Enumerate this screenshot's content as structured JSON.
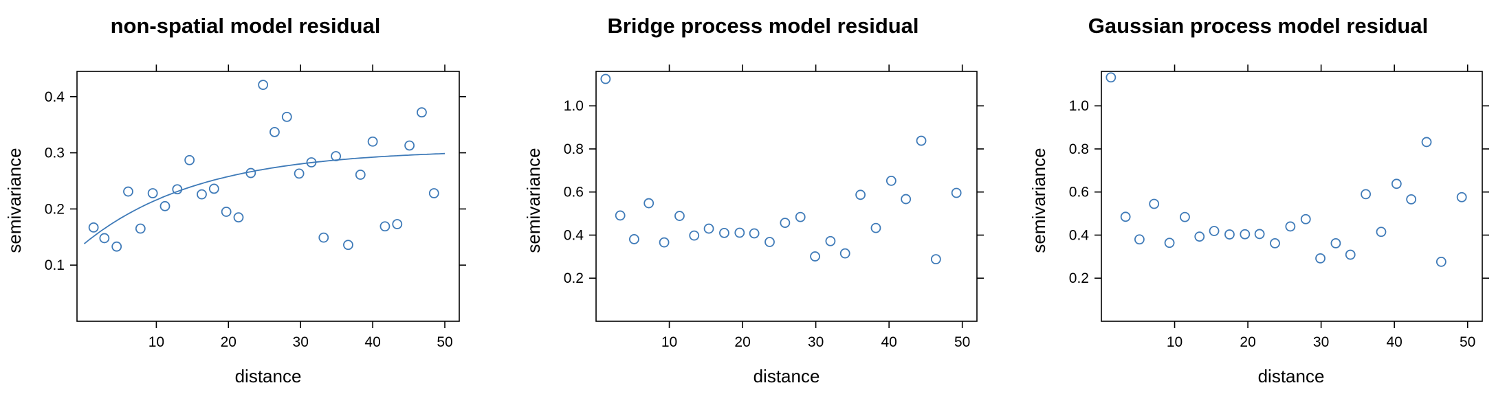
{
  "colors": {
    "series": "#3e7ab8",
    "axis": "#000000"
  },
  "chart_data": [
    {
      "type": "scatter",
      "title": "non-spatial model residual",
      "xlabel": "distance",
      "ylabel": "semivariance",
      "xlim": [
        -1,
        52
      ],
      "ylim": [
        0.0,
        0.445
      ],
      "xticks": [
        10,
        20,
        30,
        40,
        50
      ],
      "xtick_labels": [
        "10",
        "20",
        "30",
        "40",
        "50"
      ],
      "yticks": [
        0.1,
        0.2,
        0.3,
        0.4
      ],
      "ytick_labels": [
        "0.1",
        "0.2",
        "0.3",
        "0.4"
      ],
      "grid": false,
      "points": [
        {
          "x": 1.3,
          "y": 0.167
        },
        {
          "x": 2.8,
          "y": 0.148
        },
        {
          "x": 4.5,
          "y": 0.133
        },
        {
          "x": 6.1,
          "y": 0.231
        },
        {
          "x": 7.8,
          "y": 0.165
        },
        {
          "x": 9.5,
          "y": 0.228
        },
        {
          "x": 11.2,
          "y": 0.205
        },
        {
          "x": 12.9,
          "y": 0.235
        },
        {
          "x": 14.6,
          "y": 0.287
        },
        {
          "x": 16.3,
          "y": 0.226
        },
        {
          "x": 18.0,
          "y": 0.236
        },
        {
          "x": 19.7,
          "y": 0.195
        },
        {
          "x": 21.4,
          "y": 0.185
        },
        {
          "x": 23.1,
          "y": 0.264
        },
        {
          "x": 24.8,
          "y": 0.421
        },
        {
          "x": 26.4,
          "y": 0.337
        },
        {
          "x": 28.1,
          "y": 0.364
        },
        {
          "x": 29.8,
          "y": 0.263
        },
        {
          "x": 31.5,
          "y": 0.283
        },
        {
          "x": 33.2,
          "y": 0.149
        },
        {
          "x": 34.9,
          "y": 0.294
        },
        {
          "x": 36.6,
          "y": 0.136
        },
        {
          "x": 38.3,
          "y": 0.261
        },
        {
          "x": 40.0,
          "y": 0.32
        },
        {
          "x": 41.7,
          "y": 0.169
        },
        {
          "x": 43.4,
          "y": 0.173
        },
        {
          "x": 45.1,
          "y": 0.313
        },
        {
          "x": 46.8,
          "y": 0.372
        },
        {
          "x": 48.5,
          "y": 0.228
        }
      ],
      "fitted_curve": {
        "type": "exponential",
        "nugget": 0.138,
        "partial_sill": 0.168,
        "range": 16.0,
        "x_from": 0.0,
        "x_to": 50.0
      }
    },
    {
      "type": "scatter",
      "title": "Bridge process model residual",
      "xlabel": "distance",
      "ylabel": "semivariance",
      "xlim": [
        0,
        52
      ],
      "ylim": [
        0.0,
        1.16
      ],
      "xticks": [
        10,
        20,
        30,
        40,
        50
      ],
      "xtick_labels": [
        "10",
        "20",
        "30",
        "40",
        "50"
      ],
      "yticks": [
        0.2,
        0.4,
        0.6,
        0.8,
        1.0
      ],
      "ytick_labels": [
        "0.2",
        "0.4",
        "0.6",
        "0.8",
        "1.0"
      ],
      "grid": false,
      "points": [
        {
          "x": 1.3,
          "y": 1.125
        },
        {
          "x": 3.3,
          "y": 0.491
        },
        {
          "x": 5.2,
          "y": 0.381
        },
        {
          "x": 7.2,
          "y": 0.548
        },
        {
          "x": 9.3,
          "y": 0.366
        },
        {
          "x": 11.4,
          "y": 0.489
        },
        {
          "x": 13.4,
          "y": 0.398
        },
        {
          "x": 15.4,
          "y": 0.43
        },
        {
          "x": 17.5,
          "y": 0.41
        },
        {
          "x": 19.6,
          "y": 0.411
        },
        {
          "x": 21.6,
          "y": 0.408
        },
        {
          "x": 23.7,
          "y": 0.368
        },
        {
          "x": 25.8,
          "y": 0.457
        },
        {
          "x": 27.9,
          "y": 0.484
        },
        {
          "x": 29.9,
          "y": 0.301
        },
        {
          "x": 32.0,
          "y": 0.372
        },
        {
          "x": 34.0,
          "y": 0.315
        },
        {
          "x": 36.1,
          "y": 0.587
        },
        {
          "x": 38.2,
          "y": 0.433
        },
        {
          "x": 40.3,
          "y": 0.652
        },
        {
          "x": 42.3,
          "y": 0.567
        },
        {
          "x": 44.4,
          "y": 0.838
        },
        {
          "x": 46.4,
          "y": 0.288
        },
        {
          "x": 49.2,
          "y": 0.596
        }
      ]
    },
    {
      "type": "scatter",
      "title": "Gaussian process model residual",
      "xlabel": "distance",
      "ylabel": "semivariance",
      "xlim": [
        0,
        52
      ],
      "ylim": [
        0.0,
        1.16
      ],
      "xticks": [
        10,
        20,
        30,
        40,
        50
      ],
      "xtick_labels": [
        "10",
        "20",
        "30",
        "40",
        "50"
      ],
      "yticks": [
        0.2,
        0.4,
        0.6,
        0.8,
        1.0
      ],
      "ytick_labels": [
        "0.2",
        "0.4",
        "0.6",
        "0.8",
        "1.0"
      ],
      "grid": false,
      "points": [
        {
          "x": 1.3,
          "y": 1.132
        },
        {
          "x": 3.3,
          "y": 0.485
        },
        {
          "x": 5.2,
          "y": 0.38
        },
        {
          "x": 7.2,
          "y": 0.545
        },
        {
          "x": 9.3,
          "y": 0.364
        },
        {
          "x": 11.4,
          "y": 0.484
        },
        {
          "x": 13.4,
          "y": 0.393
        },
        {
          "x": 15.4,
          "y": 0.419
        },
        {
          "x": 17.5,
          "y": 0.403
        },
        {
          "x": 19.6,
          "y": 0.404
        },
        {
          "x": 21.6,
          "y": 0.405
        },
        {
          "x": 23.7,
          "y": 0.362
        },
        {
          "x": 25.8,
          "y": 0.44
        },
        {
          "x": 27.9,
          "y": 0.474
        },
        {
          "x": 29.9,
          "y": 0.292
        },
        {
          "x": 32.0,
          "y": 0.362
        },
        {
          "x": 34.0,
          "y": 0.309
        },
        {
          "x": 36.1,
          "y": 0.59
        },
        {
          "x": 38.2,
          "y": 0.415
        },
        {
          "x": 40.3,
          "y": 0.638
        },
        {
          "x": 42.3,
          "y": 0.566
        },
        {
          "x": 44.4,
          "y": 0.832
        },
        {
          "x": 46.4,
          "y": 0.276
        },
        {
          "x": 49.2,
          "y": 0.576
        }
      ]
    }
  ]
}
